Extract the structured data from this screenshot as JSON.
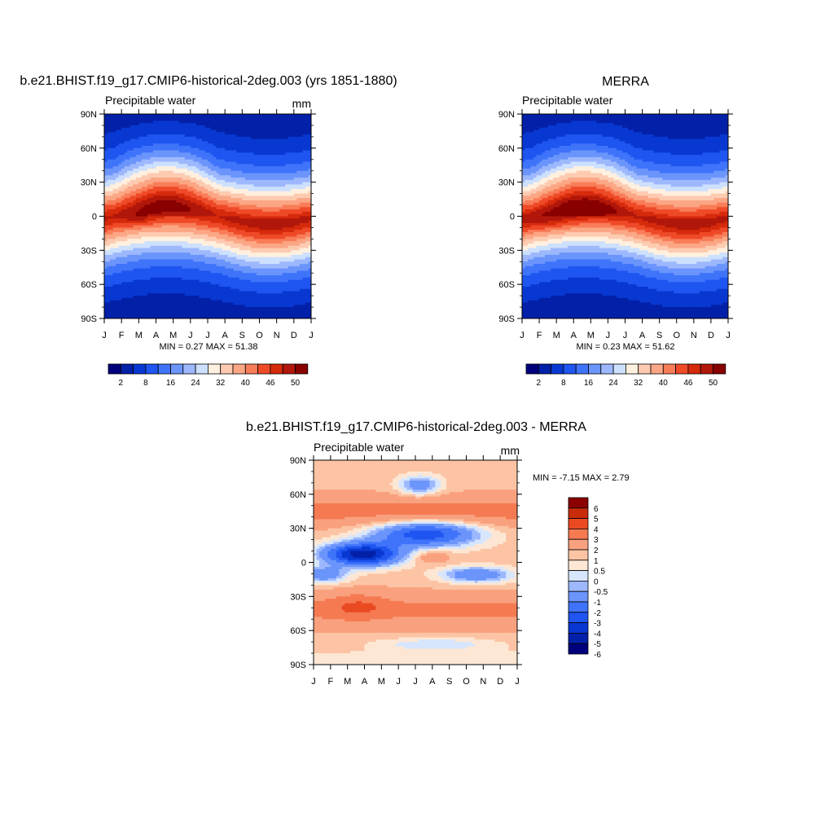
{
  "figure": {
    "panel_titles": [
      "b.e21.BHIST.f19_g17.CMIP6-historical-2deg.003 (yrs 1851-1880)",
      "MERRA",
      "b.e21.BHIST.f19_g17.CMIP6-historical-2deg.003 - MERRA"
    ]
  },
  "chart_data": [
    {
      "type": "heatmap",
      "title": "b.e21.BHIST.f19_g17.CMIP6-historical-2deg.003 (yrs 1851-1880)",
      "subtitle": "Precipitable water",
      "units": "mm",
      "x": [
        "J",
        "F",
        "M",
        "A",
        "M",
        "J",
        "J",
        "A",
        "S",
        "O",
        "N",
        "D",
        "J"
      ],
      "y": [
        "90N",
        "60N",
        "30N",
        "0",
        "30S",
        "60S",
        "90S"
      ],
      "ylim": [
        -90,
        90
      ],
      "stats": "MIN =   0.27 MAX =  51.38",
      "min": 0.27,
      "max": 51.38,
      "colorbar": {
        "labels": [
          "2",
          "8",
          "16",
          "24",
          "32",
          "40",
          "46",
          "50"
        ],
        "orientation": "horizontal"
      },
      "colors": [
        "#00007d",
        "#0320a8",
        "#0838d1",
        "#1f55f0",
        "#3f74fa",
        "#6b95fb",
        "#9db8fd",
        "#cde0fe",
        "#fff0df",
        "#fdcbb1",
        "#fba685",
        "#f97d58",
        "#ef4a28",
        "#d62a0c",
        "#b1170a",
        "#880000"
      ]
    },
    {
      "type": "heatmap",
      "title": "MERRA",
      "subtitle": "Precipitable water",
      "units": "",
      "x": [
        "J",
        "F",
        "M",
        "A",
        "M",
        "J",
        "J",
        "A",
        "S",
        "O",
        "N",
        "D",
        "J"
      ],
      "y": [
        "90N",
        "60N",
        "30N",
        "0",
        "30S",
        "60S",
        "90S"
      ],
      "ylim": [
        -90,
        90
      ],
      "stats": "MIN =   0.23 MAX =  51.62",
      "min": 0.23,
      "max": 51.62,
      "colorbar": {
        "labels": [
          "2",
          "8",
          "16",
          "24",
          "32",
          "40",
          "46",
          "50"
        ],
        "orientation": "horizontal"
      },
      "colors": [
        "#00007d",
        "#0320a8",
        "#0838d1",
        "#1f55f0",
        "#3f74fa",
        "#6b95fb",
        "#9db8fd",
        "#cde0fe",
        "#fff0df",
        "#fdcbb1",
        "#fba685",
        "#f97d58",
        "#ef4a28",
        "#d62a0c",
        "#b1170a",
        "#880000"
      ]
    },
    {
      "type": "heatmap",
      "title": "b.e21.BHIST.f19_g17.CMIP6-historical-2deg.003 - MERRA",
      "subtitle": "Precipitable water",
      "units": "mm",
      "x": [
        "J",
        "F",
        "M",
        "A",
        "M",
        "J",
        "J",
        "A",
        "S",
        "O",
        "N",
        "D",
        "J"
      ],
      "y": [
        "90N",
        "60N",
        "30N",
        "0",
        "30S",
        "60S",
        "90S"
      ],
      "ylim": [
        -90,
        90
      ],
      "stats": "MIN =  -7.15 MAX =   2.79",
      "min": -7.15,
      "max": 2.79,
      "colorbar": {
        "labels": [
          "6",
          "5",
          "4",
          "3",
          "2",
          "1",
          "0.5",
          "0",
          "-0.5",
          "-1",
          "-2",
          "-3",
          "-4",
          "-5",
          "-6"
        ],
        "orientation": "vertical"
      },
      "colors": [
        "#00007d",
        "#0320a8",
        "#0838d1",
        "#1f55f0",
        "#3f74fa",
        "#6b95fb",
        "#9db8fd",
        "#d7e6fd",
        "#fde7d4",
        "#fcc4a4",
        "#f9a17e",
        "#f57a52",
        "#ea4a22",
        "#c92c0a",
        "#8b0000"
      ]
    }
  ]
}
